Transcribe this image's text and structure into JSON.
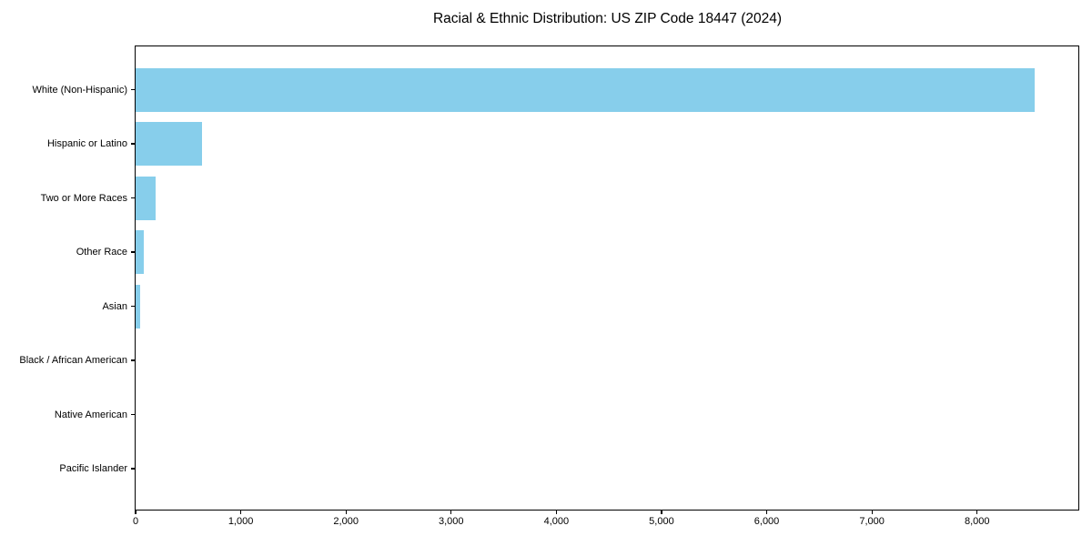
{
  "chart_data": {
    "type": "bar",
    "orientation": "horizontal",
    "title": "Racial & Ethnic Distribution: US ZIP Code 18447 (2024)",
    "categories": [
      "White (Non-Hispanic)",
      "Hispanic or Latino",
      "Two or More Races",
      "Other Race",
      "Asian",
      "Black / African American",
      "Native American",
      "Pacific Islander"
    ],
    "values": [
      8550,
      630,
      190,
      80,
      45,
      0,
      0,
      0
    ],
    "xlabel": "",
    "ylabel": "",
    "xlim": [
      0,
      8980
    ],
    "x_ticks": [
      0,
      1000,
      2000,
      3000,
      4000,
      5000,
      6000,
      7000,
      8000
    ],
    "x_tick_labels": [
      "0",
      "1,000",
      "2,000",
      "3,000",
      "4,000",
      "5,000",
      "6,000",
      "7,000",
      "8,000"
    ],
    "bar_color": "#87CEEB",
    "background_color": "#ffffff",
    "grid": false,
    "legend": false
  }
}
